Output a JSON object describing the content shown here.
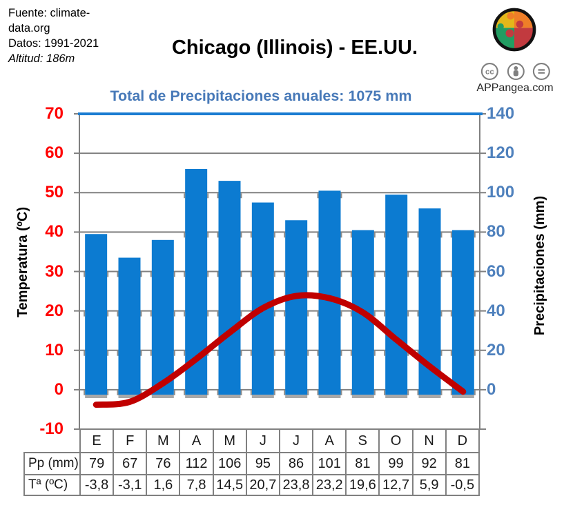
{
  "header": {
    "source_line1": "Fuente: climate-",
    "source_line2": "data.org",
    "data_line": "Datos: 1991-2021",
    "altitude_line": "Altitud: 186m",
    "title": "Chicago (Illinois) - EE.UU.",
    "subtitle": "Total de Precipitaciones anuales: 1075 mm",
    "brand": "APPangea.com",
    "license_icons": [
      "cc",
      "attribution-person",
      "no-derivatives-equals"
    ]
  },
  "chart_data": {
    "type": "bar+line",
    "title": "Total de Precipitaciones anuales: 1075 mm",
    "total_precip_mm": 1075,
    "categories": [
      "E",
      "F",
      "M",
      "A",
      "M",
      "J",
      "J",
      "A",
      "S",
      "O",
      "N",
      "D"
    ],
    "series": [
      {
        "name": "Pp (mm)",
        "type": "bar",
        "axis": "right",
        "values": [
          79,
          67,
          76,
          112,
          106,
          95,
          86,
          101,
          81,
          99,
          92,
          81
        ]
      },
      {
        "name": "Tª (ºC)",
        "type": "line",
        "axis": "left",
        "values": [
          -3.8,
          -3.1,
          1.6,
          7.8,
          14.5,
          20.7,
          23.8,
          23.2,
          19.6,
          12.7,
          5.9,
          -0.5
        ]
      }
    ],
    "left_axis": {
      "label": "Temperatura (ºC)",
      "min": -10,
      "max": 70,
      "step": 10,
      "ticks": [
        70,
        60,
        50,
        40,
        30,
        20,
        10,
        0,
        -10
      ]
    },
    "right_axis": {
      "label": "Precipitaciones (mm)",
      "min": -20,
      "max": 140,
      "step": 20,
      "ticks": [
        140,
        120,
        100,
        80,
        60,
        40,
        20,
        0
      ]
    },
    "grid": true,
    "legend": "none"
  },
  "table": {
    "pp_label": "Pp (mm)",
    "temp_label": "Tª (ºC)",
    "pp_display": [
      "79",
      "67",
      "76",
      "112",
      "106",
      "95",
      "86",
      "101",
      "81",
      "99",
      "92",
      "81"
    ],
    "temp_display": [
      "-3,8",
      "-3,1",
      "1,6",
      "7,8",
      "14,5",
      "20,7",
      "23,8",
      "23,2",
      "19,6",
      "12,7",
      "5,9",
      "-0,5"
    ]
  },
  "colors": {
    "bar": "#0C7BD1",
    "line": "#C00000",
    "left_axis_text": "#FF0000",
    "right_axis_text": "#4F81BD",
    "subtitle_text": "#4779B8",
    "grid": "#808080",
    "stub": "#8C8C8C",
    "bar_shadow": "#A8A8A8",
    "top_border": "#1A7CD2"
  }
}
